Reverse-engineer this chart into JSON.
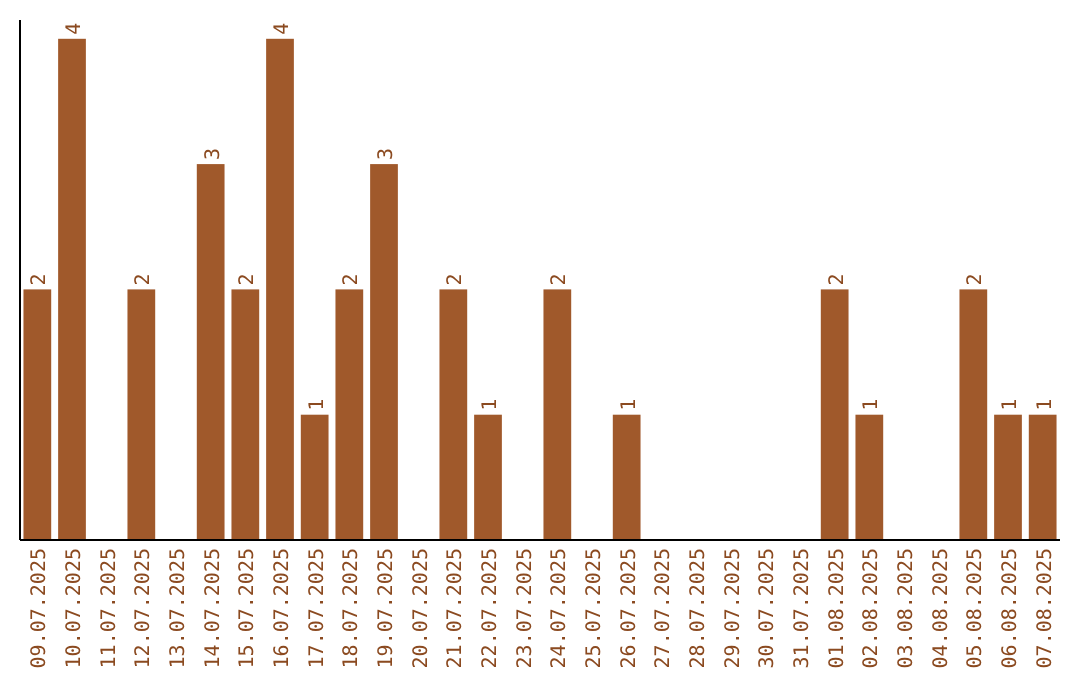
{
  "chart_data": {
    "type": "bar",
    "categories": [
      "09.07.2025",
      "10.07.2025",
      "11.07.2025",
      "12.07.2025",
      "13.07.2025",
      "14.07.2025",
      "15.07.2025",
      "16.07.2025",
      "17.07.2025",
      "18.07.2025",
      "19.07.2025",
      "20.07.2025",
      "21.07.2025",
      "22.07.2025",
      "23.07.2025",
      "24.07.2025",
      "25.07.2025",
      "26.07.2025",
      "27.07.2025",
      "28.07.2025",
      "29.07.2025",
      "30.07.2025",
      "31.07.2025",
      "01.08.2025",
      "02.08.2025",
      "03.08.2025",
      "04.08.2025",
      "05.08.2025",
      "06.08.2025",
      "07.08.2025"
    ],
    "values": [
      2,
      4,
      0,
      2,
      0,
      3,
      2,
      4,
      1,
      2,
      3,
      0,
      2,
      1,
      0,
      2,
      0,
      1,
      0,
      0,
      0,
      0,
      0,
      2,
      1,
      0,
      0,
      2,
      1,
      1
    ],
    "value_labels": [
      "2",
      "4",
      null,
      "2",
      null,
      "3",
      "2",
      "4",
      "1",
      "2",
      "3",
      null,
      "2",
      "1",
      null,
      "2",
      null,
      "1",
      null,
      null,
      null,
      null,
      null,
      "2",
      "1",
      null,
      null,
      "2",
      "1",
      "1"
    ],
    "color": "#a0592b",
    "ylim": [
      0,
      4.15
    ],
    "tick_labels": "x"
  }
}
